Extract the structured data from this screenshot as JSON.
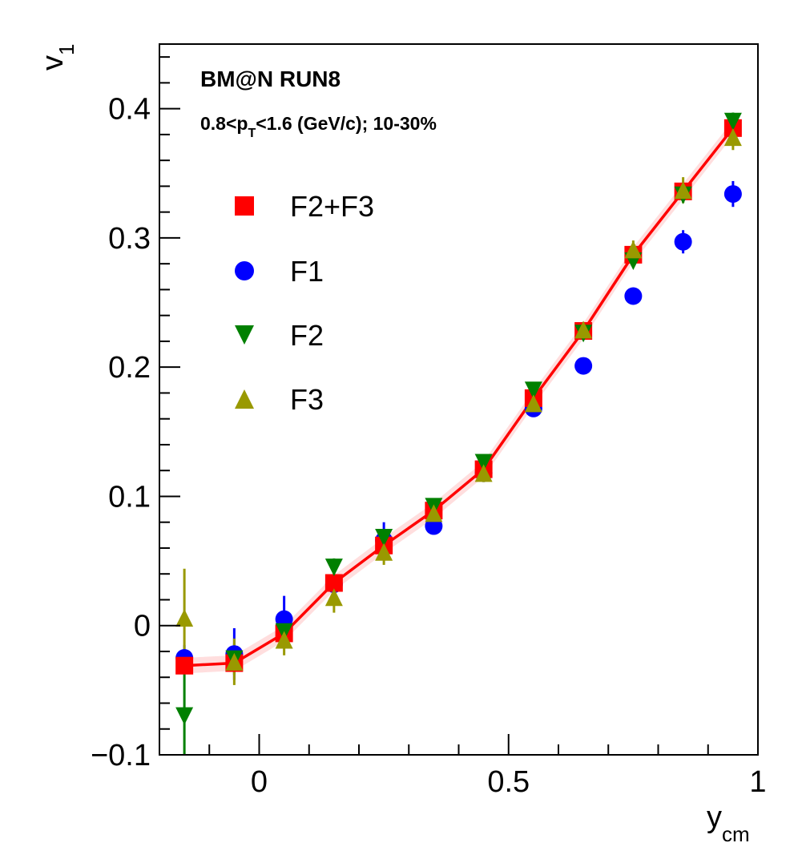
{
  "chart_data": {
    "type": "scatter",
    "annotations": {
      "line1": "BM@N RUN8",
      "line2_prefix": "0.8<p",
      "line2_sub": "T",
      "line2_suffix": "<1.6 (GeV/c); 10-30%"
    },
    "xlabel": {
      "main": "y",
      "sub": "cm"
    },
    "ylabel": {
      "main": "v",
      "sub": "1"
    },
    "xlim": [
      -0.2,
      1.0
    ],
    "ylim": [
      -0.1,
      0.45
    ],
    "xticks": [
      {
        "value": 0,
        "label": "0"
      },
      {
        "value": 0.5,
        "label": "0.5"
      },
      {
        "value": 1,
        "label": "1"
      }
    ],
    "yticks": [
      {
        "value": -0.1,
        "label": "−0.1"
      },
      {
        "value": 0,
        "label": "0"
      },
      {
        "value": 0.1,
        "label": "0.1"
      },
      {
        "value": 0.2,
        "label": "0.2"
      },
      {
        "value": 0.3,
        "label": "0.3"
      },
      {
        "value": 0.4,
        "label": "0.4"
      }
    ],
    "legend_position": "upper-left",
    "fit_line": {
      "color": "#ff0000",
      "x": [
        -0.15,
        -0.05,
        0.05,
        0.15,
        0.25,
        0.35,
        0.45,
        0.55,
        0.65,
        0.75,
        0.85,
        0.95
      ],
      "y": [
        -0.031,
        -0.029,
        -0.006,
        0.033,
        0.062,
        0.089,
        0.121,
        0.176,
        0.228,
        0.287,
        0.336,
        0.385
      ],
      "band_color": "#ffd0d0"
    },
    "series": [
      {
        "name": "F2+F3",
        "marker": "square",
        "color": "#ff0000",
        "x": [
          -0.15,
          -0.05,
          0.05,
          0.15,
          0.25,
          0.35,
          0.45,
          0.55,
          0.65,
          0.75,
          0.85,
          0.95
        ],
        "y": [
          -0.031,
          -0.029,
          -0.006,
          0.033,
          0.062,
          0.089,
          0.121,
          0.176,
          0.228,
          0.287,
          0.336,
          0.385
        ],
        "err": [
          0.003,
          0.003,
          0.003,
          0.003,
          0.003,
          0.003,
          0.003,
          0.003,
          0.003,
          0.003,
          0.003,
          0.003
        ]
      },
      {
        "name": "F1",
        "marker": "circle",
        "color": "#0000ff",
        "x": [
          -0.15,
          -0.05,
          0.05,
          0.15,
          0.25,
          0.35,
          0.45,
          0.55,
          0.65,
          0.75,
          0.85,
          0.95
        ],
        "y": [
          -0.025,
          -0.022,
          0.005,
          0.032,
          0.066,
          0.077,
          0.118,
          0.168,
          0.201,
          0.255,
          0.297,
          0.334
        ],
        "err": [
          0.01,
          0.02,
          0.018,
          0.006,
          0.014,
          0.005,
          0.005,
          0.006,
          0.006,
          0.006,
          0.009,
          0.01
        ]
      },
      {
        "name": "F2",
        "marker": "triangle-down",
        "color": "#008000",
        "x": [
          -0.15,
          -0.05,
          0.05,
          0.15,
          0.25,
          0.35,
          0.45,
          0.55,
          0.65,
          0.75,
          0.85,
          0.95
        ],
        "y": [
          -0.07,
          -0.026,
          -0.005,
          0.045,
          0.068,
          0.092,
          0.126,
          0.182,
          0.226,
          0.282,
          0.333,
          0.39
        ],
        "err": [
          0.05,
          0.012,
          0.01,
          0.007,
          0.006,
          0.005,
          0.005,
          0.005,
          0.005,
          0.005,
          0.006,
          0.007
        ]
      },
      {
        "name": "F3",
        "marker": "triangle-up",
        "color": "#999900",
        "x": [
          -0.15,
          -0.05,
          0.05,
          0.15,
          0.25,
          0.35,
          0.45,
          0.55,
          0.65,
          0.75,
          0.85,
          0.95
        ],
        "y": [
          0.006,
          -0.028,
          -0.011,
          0.022,
          0.057,
          0.087,
          0.118,
          0.172,
          0.229,
          0.291,
          0.337,
          0.378
        ],
        "err": [
          0.038,
          0.018,
          0.012,
          0.012,
          0.01,
          0.008,
          0.007,
          0.007,
          0.006,
          0.007,
          0.01,
          0.01
        ]
      }
    ]
  }
}
